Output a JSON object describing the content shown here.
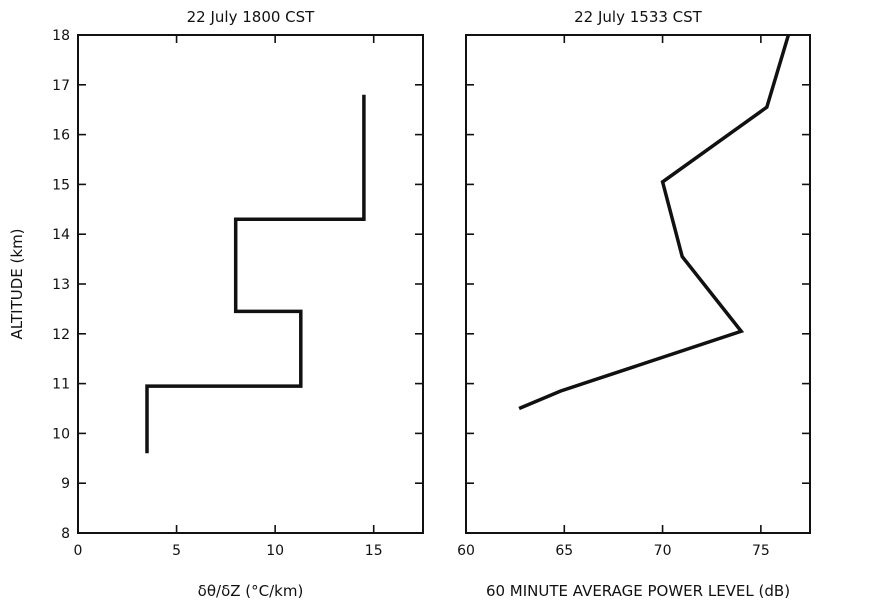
{
  "chart_data": [
    {
      "type": "line",
      "title": "22 July 1800 CST",
      "xlabel": "δθ/δZ (°C/km)",
      "ylabel": "ALTITUDE (km)",
      "xlim": [
        0,
        17.5
      ],
      "ylim": [
        8,
        18
      ],
      "xticks": [
        0,
        5,
        10,
        15
      ],
      "yticks": [
        8,
        9,
        10,
        11,
        12,
        13,
        14,
        15,
        16,
        17,
        18
      ],
      "grid": false,
      "series": [
        {
          "points": [
            [
              3.5,
              9.6
            ],
            [
              3.5,
              10.95
            ],
            [
              11.3,
              10.95
            ],
            [
              11.3,
              12.45
            ],
            [
              8.0,
              12.45
            ],
            [
              8.0,
              14.3
            ],
            [
              14.5,
              14.3
            ],
            [
              14.5,
              16.8
            ]
          ]
        }
      ]
    },
    {
      "type": "line",
      "title": "22 July 1533 CST",
      "xlabel": "60 MINUTE AVERAGE POWER LEVEL (dB)",
      "ylabel": "",
      "xlim": [
        60,
        77.5
      ],
      "ylim": [
        8,
        18
      ],
      "xticks": [
        60,
        65,
        70,
        75
      ],
      "grid": false,
      "series": [
        {
          "points": [
            [
              62.7,
              10.5
            ],
            [
              64.8,
              10.85
            ],
            [
              74.0,
              12.05
            ],
            [
              71.0,
              13.55
            ],
            [
              70.0,
              15.05
            ],
            [
              75.3,
              16.55
            ],
            [
              76.4,
              18.0
            ]
          ]
        }
      ]
    }
  ]
}
